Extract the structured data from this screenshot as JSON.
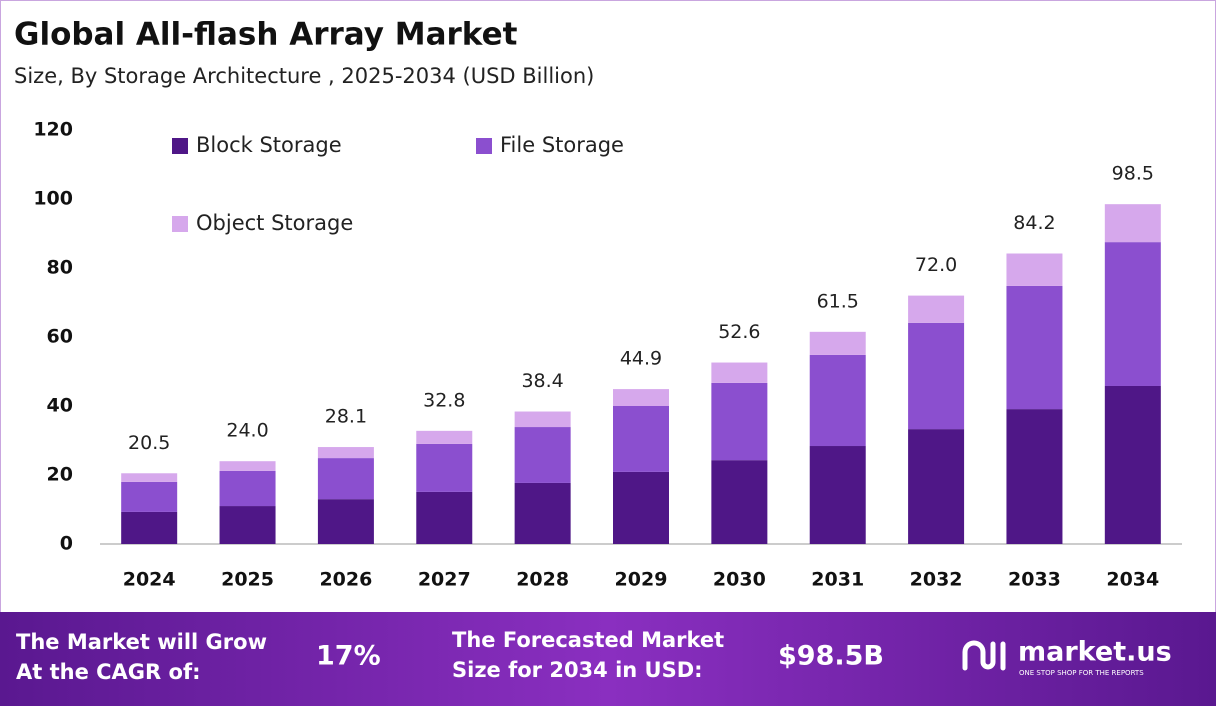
{
  "chart_data": {
    "type": "stacked-bar",
    "title": "Global All-flash Array Market",
    "subtitle": "Size, By Storage Architecture , 2025-2034 (USD Billion)",
    "categories": [
      "2024",
      "2025",
      "2026",
      "2027",
      "2028",
      "2029",
      "2030",
      "2031",
      "2032",
      "2033",
      "2034"
    ],
    "series": [
      {
        "name": "Block Storage",
        "color": "#4f1787",
        "values": [
          9.3,
          11.0,
          13.0,
          15.1,
          17.7,
          20.9,
          24.3,
          28.4,
          33.3,
          39.1,
          45.8
        ]
      },
      {
        "name": "File Storage",
        "color": "#8b4fcf",
        "values": [
          8.7,
          10.2,
          11.9,
          13.9,
          16.2,
          19.1,
          22.4,
          26.4,
          30.8,
          35.7,
          41.7
        ]
      },
      {
        "name": "Object Storage",
        "color": "#d6a8ec",
        "values": [
          2.5,
          2.8,
          3.2,
          3.8,
          4.5,
          4.9,
          5.9,
          6.7,
          7.9,
          9.4,
          11.0
        ]
      }
    ],
    "totals": {
      "values": [
        20.5,
        24,
        28.1,
        32.8,
        38.4,
        44.9,
        52.6,
        61.5,
        72,
        84.2,
        98.5
      ],
      "value_labels": [
        "20.5",
        "24.0",
        "28.1",
        "32.8",
        "38.4",
        "44.9",
        "52.6",
        "61.5",
        "72.0",
        "84.2",
        "98.5"
      ]
    },
    "ylim": [
      0,
      120
    ],
    "yticks": [
      0,
      20,
      40,
      60,
      80,
      100,
      120
    ],
    "grid": false,
    "legend": "top-left"
  },
  "footer": {
    "cagr_text": [
      "The Market will Grow",
      "At the CAGR of:"
    ],
    "cagr": "17%",
    "forecast_text": [
      "The Forecasted Market",
      "Size for 2034 in USD:"
    ],
    "forecast": "$98.5B",
    "logo": "market.us",
    "tagline": "ONE STOP SHOP FOR THE REPORTS"
  }
}
